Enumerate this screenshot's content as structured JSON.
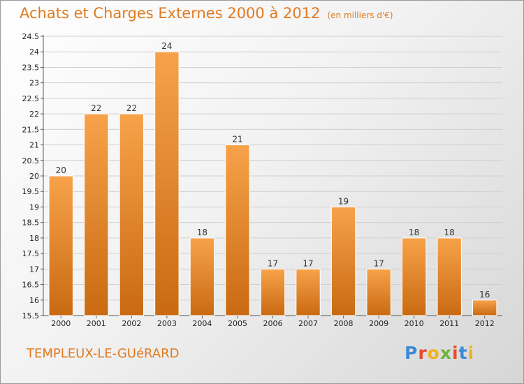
{
  "chart_data": {
    "type": "bar",
    "title": "Achats et Charges Externes 2000 à 2012",
    "unit_label": "(en milliers d'€)",
    "categories": [
      "2000",
      "2001",
      "2002",
      "2003",
      "2004",
      "2005",
      "2006",
      "2007",
      "2008",
      "2009",
      "2010",
      "2011",
      "2012"
    ],
    "values": [
      20,
      22,
      22,
      24,
      18,
      21,
      17,
      17,
      19,
      17,
      18,
      18,
      16
    ],
    "value_labels": [
      "20",
      "22",
      "22",
      "24",
      "18",
      "21",
      "17",
      "17",
      "19",
      "17",
      "18",
      "18",
      "16"
    ],
    "ylim": [
      15.5,
      24.5
    ],
    "yticks": [
      15.5,
      16,
      16.5,
      17,
      17.5,
      18,
      18.5,
      19,
      19.5,
      20,
      20.5,
      21,
      21.5,
      22,
      22.5,
      23,
      23.5,
      24,
      24.5
    ],
    "ytick_labels": [
      "15.5",
      "16",
      "16.5",
      "17",
      "17.5",
      "18",
      "18.5",
      "19",
      "19.5",
      "20",
      "20.5",
      "21",
      "21.5",
      "22",
      "22.5",
      "23",
      "23.5",
      "24",
      "24.5"
    ],
    "grid": true,
    "bar_color": "#f0922f",
    "bar_color_dark": "#c96a12",
    "legend": "none"
  },
  "commune": "TEMPLEUX-LE-GUéRARD",
  "logo": {
    "letters": [
      "P",
      "r",
      "o",
      "x",
      "i",
      "t",
      "i"
    ],
    "colors": [
      "#3a8ad6",
      "#e84a2c",
      "#f2b21c",
      "#6db33f",
      "#e84a2c",
      "#3a8ad6",
      "#f2b21c"
    ]
  }
}
